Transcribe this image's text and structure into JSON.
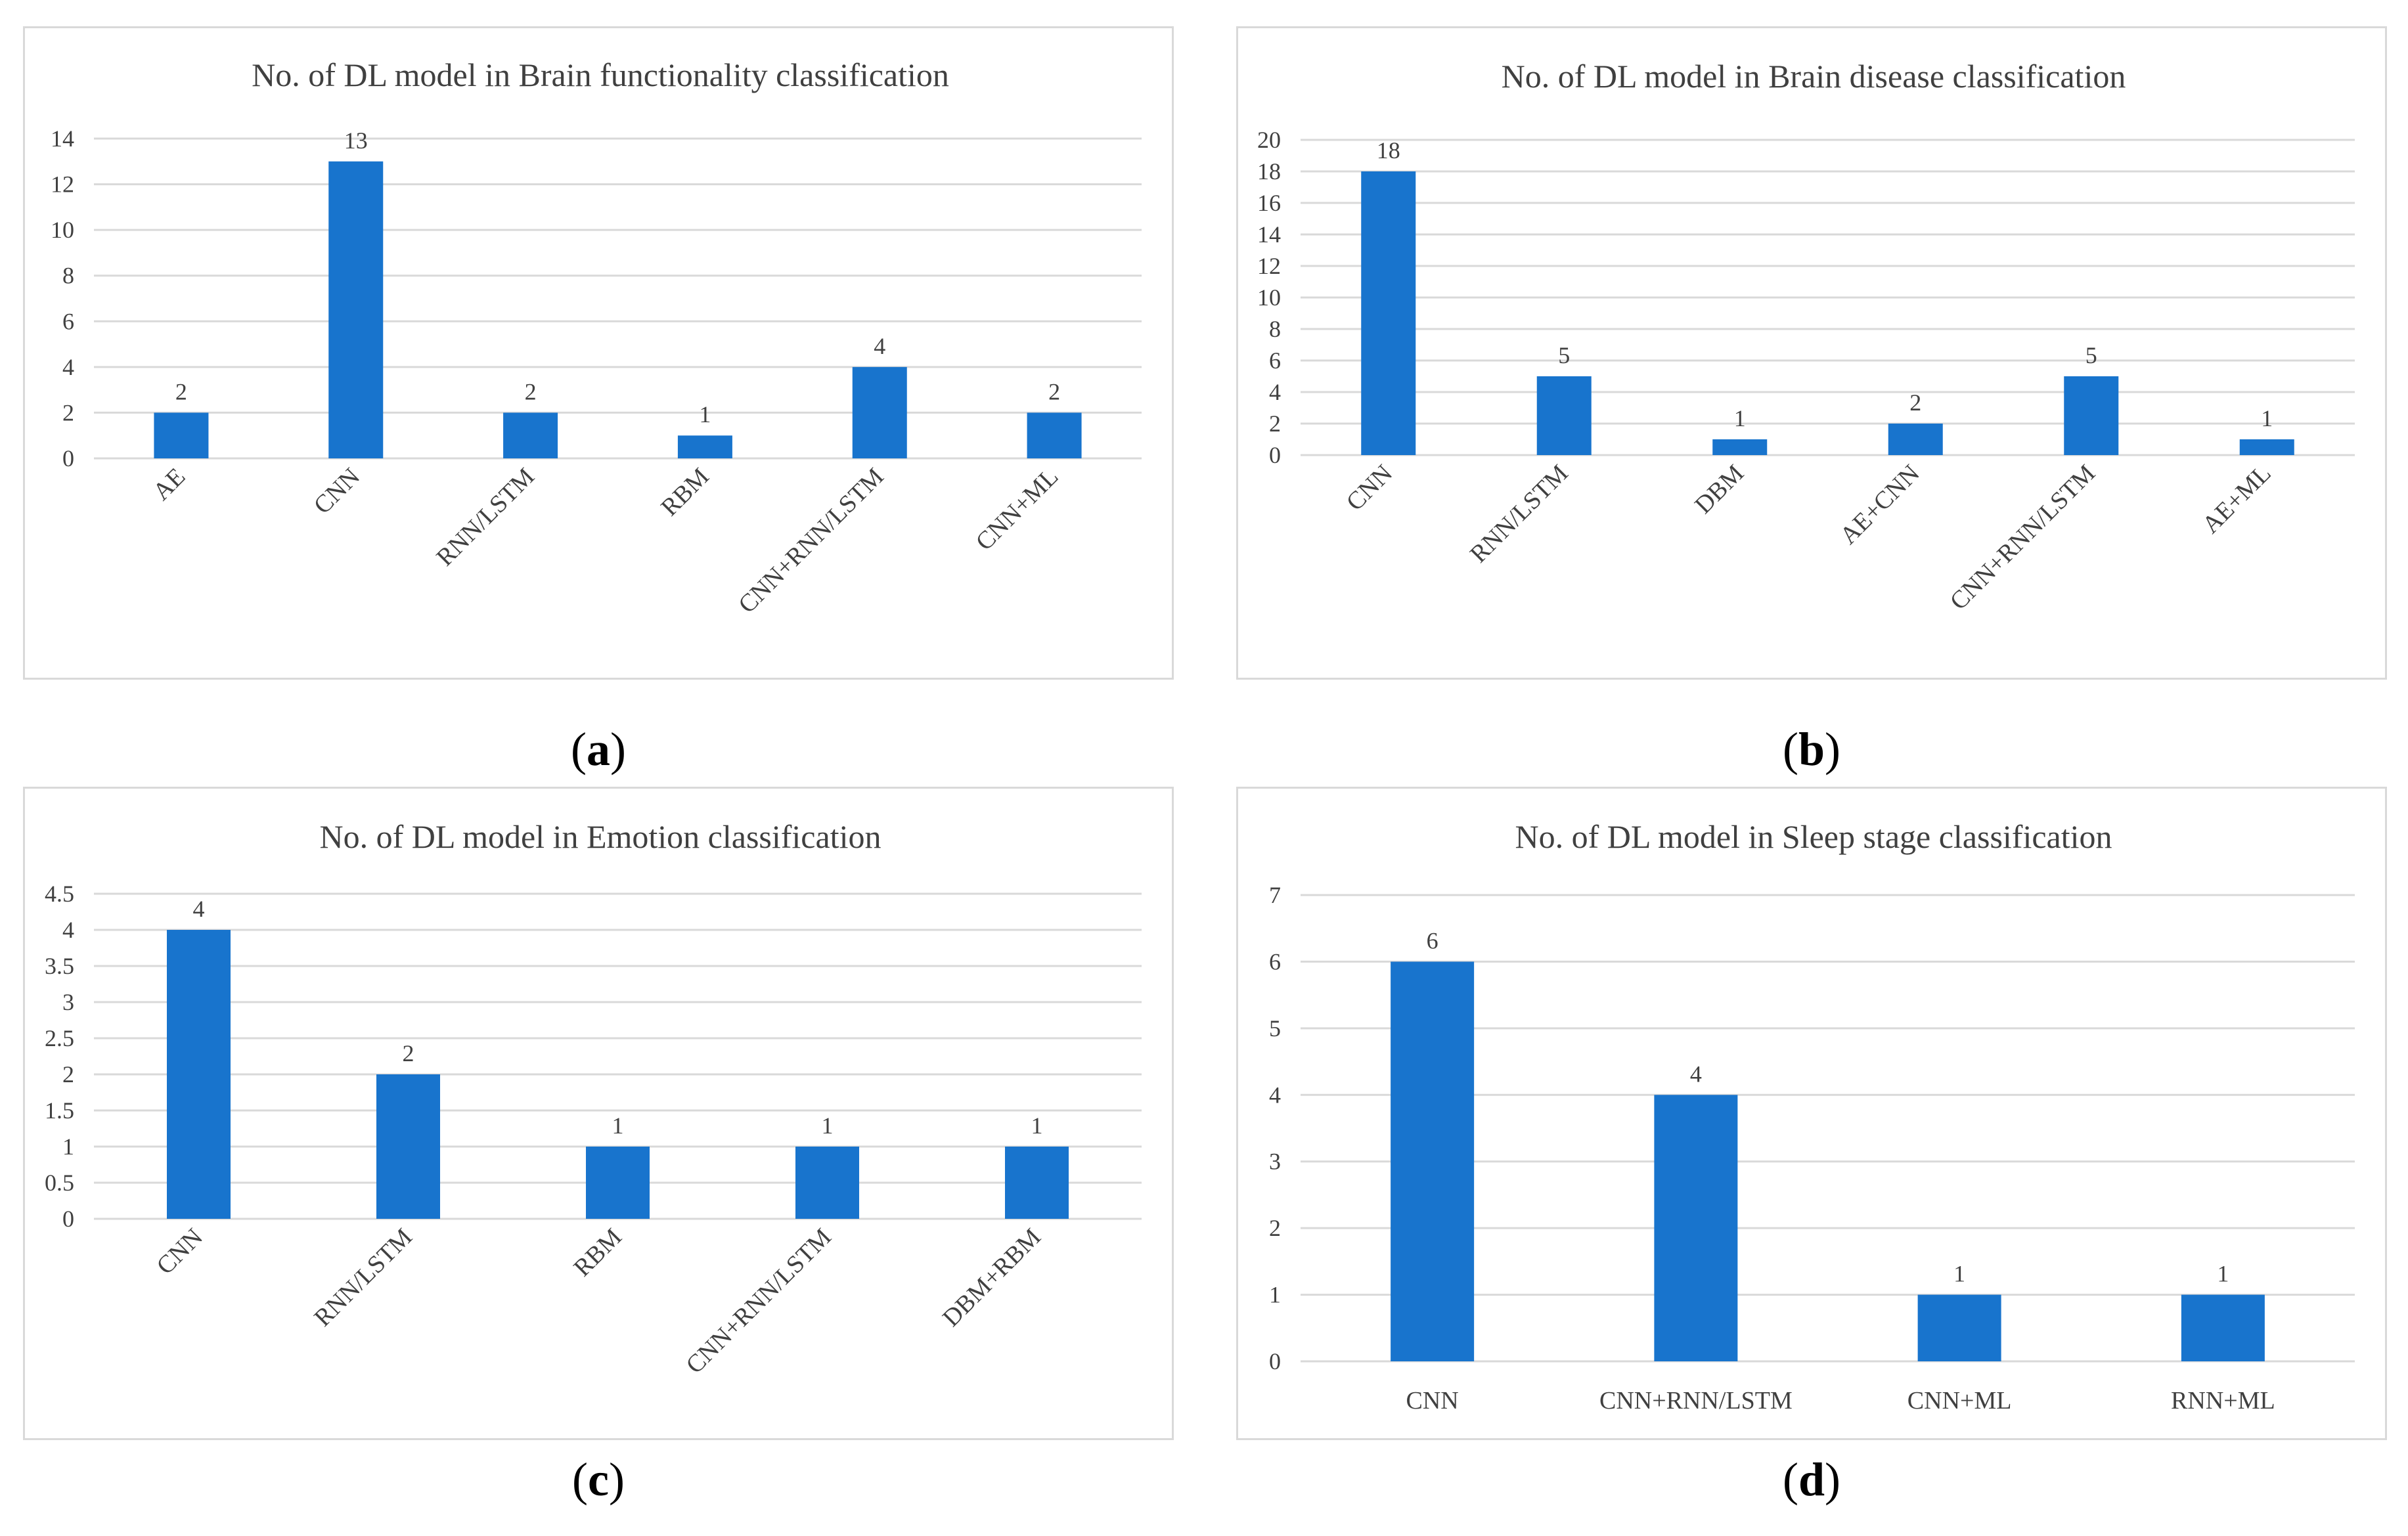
{
  "bar_color": "#1874cd",
  "grid_color": "#d9d9d9",
  "label_color": "#404040",
  "captions": [
    {
      "open": "(",
      "letter": "a",
      "close": ")"
    },
    {
      "open": "(",
      "letter": "b",
      "close": ")"
    },
    {
      "open": "(",
      "letter": "c",
      "close": ")"
    },
    {
      "open": "(",
      "letter": "d",
      "close": ")"
    }
  ],
  "chart_data": [
    {
      "type": "bar",
      "title": "No. of DL model in Brain functionality classification",
      "categories": [
        "AE",
        "CNN",
        "RNN/LSTM",
        "RBM",
        "CNN+RNN/LSTM",
        "CNN+ML"
      ],
      "values": [
        2,
        13,
        2,
        1,
        4,
        2
      ],
      "yticks": [
        "0",
        "2",
        "4",
        "6",
        "8",
        "10",
        "12",
        "14"
      ],
      "ylim": [
        0,
        14
      ],
      "xlabel": "",
      "ylabel": "",
      "rotated_labels": true,
      "grid": true
    },
    {
      "type": "bar",
      "title": "No. of DL model in Brain disease classification",
      "categories": [
        "CNN",
        "RNN/LSTM",
        "DBM",
        "AE+CNN",
        "CNN+RNN/LSTM",
        "AE+ML"
      ],
      "values": [
        18,
        5,
        1,
        2,
        5,
        1
      ],
      "yticks": [
        "0",
        "2",
        "4",
        "6",
        "8",
        "10",
        "12",
        "14",
        "16",
        "18",
        "20"
      ],
      "ylim": [
        0,
        20
      ],
      "xlabel": "",
      "ylabel": "",
      "rotated_labels": true,
      "grid": true
    },
    {
      "type": "bar",
      "title": "No. of DL model in Emotion classification",
      "categories": [
        "CNN",
        "RNN/LSTM",
        "RBM",
        "CNN+RNN/LSTM",
        "DBM+RBM"
      ],
      "values": [
        4,
        2,
        1,
        1,
        1
      ],
      "yticks": [
        "0",
        "0.5",
        "1",
        "1.5",
        "2",
        "2.5",
        "3",
        "3.5",
        "4",
        "4.5"
      ],
      "ylim": [
        0,
        4.5
      ],
      "xlabel": "",
      "ylabel": "",
      "rotated_labels": true,
      "grid": true
    },
    {
      "type": "bar",
      "title": "No. of DL model in Sleep stage classification",
      "categories": [
        "CNN",
        "CNN+RNN/LSTM",
        "CNN+ML",
        "RNN+ML"
      ],
      "values": [
        6,
        4,
        1,
        1
      ],
      "yticks": [
        "0",
        "1",
        "2",
        "3",
        "4",
        "5",
        "6",
        "7"
      ],
      "ylim": [
        0,
        7
      ],
      "xlabel": "",
      "ylabel": "",
      "rotated_labels": false,
      "grid": true
    }
  ]
}
